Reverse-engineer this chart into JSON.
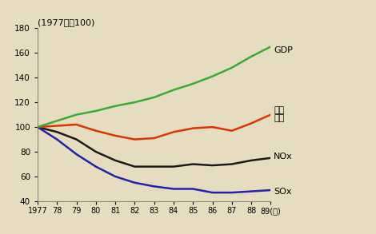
{
  "years": [
    1977,
    1978,
    1979,
    1980,
    1981,
    1982,
    1983,
    1984,
    1985,
    1986,
    1987,
    1988,
    1989
  ],
  "GDP": [
    100,
    105,
    110,
    113,
    117,
    120,
    124,
    130,
    135,
    141,
    148,
    157,
    165
  ],
  "fuel": [
    100,
    101,
    102,
    97,
    93,
    90,
    91,
    96,
    99,
    100,
    97,
    103,
    110
  ],
  "NOx": [
    100,
    96,
    90,
    80,
    73,
    68,
    68,
    68,
    70,
    69,
    70,
    73,
    75
  ],
  "SOx": [
    100,
    90,
    78,
    68,
    60,
    55,
    52,
    50,
    50,
    47,
    47,
    48,
    49
  ],
  "GDP_color": "#3aaa35",
  "fuel_color": "#dd3300",
  "NOx_color": "#1a1a1a",
  "SOx_color": "#2222aa",
  "bg_color": "#e6ddc0",
  "ylim": [
    40,
    180
  ],
  "yticks": [
    40,
    60,
    80,
    100,
    120,
    140,
    160,
    180
  ],
  "note": "(1977年＝100)",
  "GDP_label": "GDP",
  "fuel_label_line1": "燃料",
  "fuel_label_line2": "使用",
  "NOx_label": "NOx",
  "SOx_label": "SOx",
  "year_label": "89(年)"
}
